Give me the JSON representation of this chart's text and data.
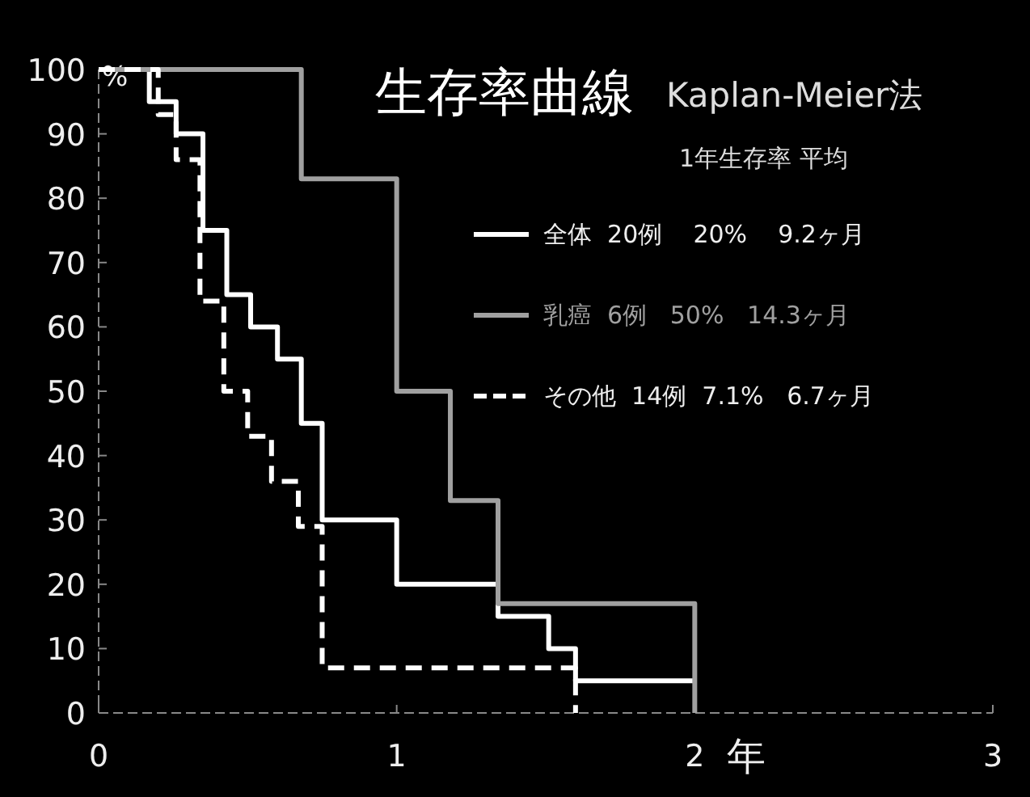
{
  "chart_data": {
    "type": "step",
    "title": "生存率曲線",
    "subtitle": "Kaplan-Meier法",
    "xlabel": "年",
    "ylabel": "%",
    "legend_title": "1年生存率  平均",
    "xlim": [
      0,
      3
    ],
    "xticks": [
      0,
      1,
      2,
      3
    ],
    "ylim": [
      0,
      100
    ],
    "yticks": [
      0,
      10,
      20,
      30,
      40,
      50,
      60,
      70,
      80,
      90,
      100
    ],
    "grid": false,
    "legend": "top right",
    "series": [
      {
        "name": "全体  20例    20%    9.2ヶ月",
        "color": "#ffffff",
        "line_style": "solid",
        "x": [
          0,
          0.17,
          0.26,
          0.35,
          0.43,
          0.51,
          0.6,
          0.68,
          0.75,
          1.0,
          1.34,
          1.51,
          1.6,
          2.0
        ],
        "values": [
          100,
          95,
          90,
          75,
          65,
          60,
          55,
          45,
          30,
          20,
          15,
          10,
          5,
          5
        ]
      },
      {
        "name": "乳癌  6例   50%   14.3ヶ月",
        "color": "#a0a0a0",
        "line_style": "solid",
        "x": [
          0,
          0.68,
          1.0,
          1.18,
          1.34,
          2.0
        ],
        "values": [
          100,
          83,
          50,
          33,
          17,
          0
        ]
      },
      {
        "name": "その他  14例  7.1%   6.7ヶ月",
        "color": "#ffffff",
        "line_style": "dashed",
        "x": [
          0,
          0.2,
          0.26,
          0.34,
          0.42,
          0.5,
          0.58,
          0.67,
          0.75,
          1.6
        ],
        "values": [
          100,
          93,
          86,
          64,
          50,
          43,
          36,
          29,
          7,
          0
        ]
      }
    ]
  }
}
